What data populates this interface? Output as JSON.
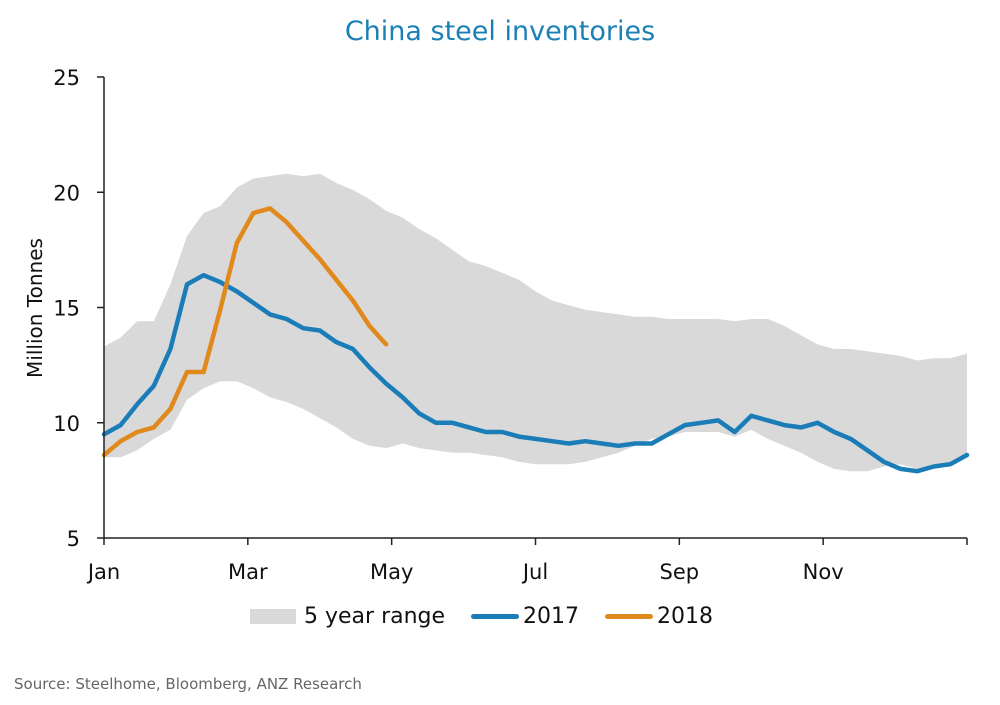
{
  "chart_data": {
    "type": "line",
    "title": "China steel inventories",
    "xlabel": "",
    "ylabel": "Million Tonnes",
    "ylim": [
      5,
      25
    ],
    "yticks": [
      5,
      10,
      15,
      20,
      25
    ],
    "xtick_labels": [
      "Jan",
      "Mar",
      "May",
      "Jul",
      "Sep",
      "Nov"
    ],
    "x_unit": "week of year (1-53)",
    "grid": false,
    "legend_position": "bottom-center",
    "band": {
      "name": "5 year range",
      "color": "#d9d9d9",
      "upper": [
        13.3,
        13.7,
        14.4,
        14.4,
        16.0,
        18.1,
        19.1,
        19.4,
        20.2,
        20.6,
        20.7,
        20.8,
        20.7,
        20.8,
        20.4,
        20.1,
        19.7,
        19.2,
        18.9,
        18.4,
        18.0,
        17.5,
        17.0,
        16.8,
        16.5,
        16.2,
        15.7,
        15.3,
        15.1,
        14.9,
        14.8,
        14.7,
        14.6,
        14.6,
        14.5,
        14.5,
        14.5,
        14.5,
        14.4,
        14.5,
        14.5,
        14.2,
        13.8,
        13.4,
        13.2,
        13.2,
        13.1,
        13.0,
        12.9,
        12.7,
        12.8,
        12.8,
        13.0
      ],
      "lower": [
        8.5,
        8.5,
        8.8,
        9.3,
        9.7,
        11.0,
        11.5,
        11.8,
        11.8,
        11.5,
        11.1,
        10.9,
        10.6,
        10.2,
        9.8,
        9.3,
        9.0,
        8.9,
        9.1,
        8.9,
        8.8,
        8.7,
        8.7,
        8.6,
        8.5,
        8.3,
        8.2,
        8.2,
        8.2,
        8.3,
        8.5,
        8.7,
        9.0,
        9.3,
        9.4,
        9.6,
        9.6,
        9.6,
        9.4,
        9.7,
        9.3,
        9.0,
        8.7,
        8.3,
        8.0,
        7.9,
        7.9,
        8.1,
        8.2,
        8.0,
        8.1,
        8.2,
        8.6
      ]
    },
    "series": [
      {
        "name": "2017",
        "color": "#1a7db8",
        "values": [
          9.5,
          9.9,
          10.8,
          11.6,
          13.2,
          16.0,
          16.4,
          16.1,
          15.7,
          15.2,
          14.7,
          14.5,
          14.1,
          14.0,
          13.5,
          13.2,
          12.4,
          11.7,
          11.1,
          10.4,
          10.0,
          10.0,
          9.8,
          9.6,
          9.6,
          9.4,
          9.3,
          9.2,
          9.1,
          9.2,
          9.1,
          9.0,
          9.1,
          9.1,
          9.5,
          9.9,
          10.0,
          10.1,
          9.6,
          10.3,
          10.1,
          9.9,
          9.8,
          10.0,
          9.6,
          9.3,
          8.8,
          8.3,
          8.0,
          7.9,
          8.1,
          8.2,
          8.6
        ]
      },
      {
        "name": "2018",
        "color": "#e08a1e",
        "values": [
          8.6,
          9.2,
          9.6,
          9.8,
          10.6,
          12.2,
          12.2,
          14.9,
          17.8,
          19.1,
          19.3,
          18.7,
          17.9,
          17.1,
          16.2,
          15.3,
          14.2,
          13.4
        ]
      }
    ]
  },
  "legend": [
    {
      "label": "5 year range",
      "kind": "area",
      "color": "#d9d9d9"
    },
    {
      "label": "2017",
      "kind": "line",
      "color": "#1a7db8"
    },
    {
      "label": "2018",
      "kind": "line",
      "color": "#e08a1e"
    }
  ],
  "source": "Source: Steelhome, Bloomberg, ANZ Research"
}
